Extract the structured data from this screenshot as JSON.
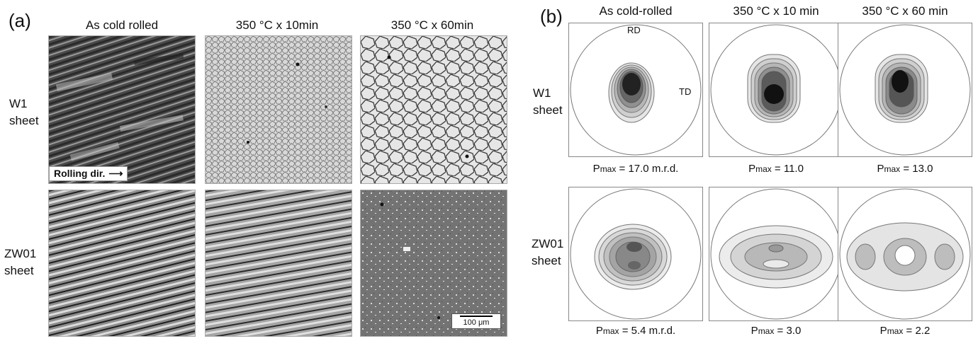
{
  "panel_a": {
    "label": "(a)",
    "columns": [
      "As cold rolled",
      "350 °C x 10min",
      "350 °C x 60min"
    ],
    "rows": [
      {
        "line1": "W1",
        "line2": "sheet"
      },
      {
        "line1": "ZW01",
        "line2": "sheet"
      }
    ],
    "rolling_dir": "Rolling dir.",
    "scale_bar": "100 μm"
  },
  "panel_b": {
    "label": "(b)",
    "columns": [
      "As cold-rolled",
      "350 °C x 10 min",
      "350 °C x 60 min"
    ],
    "rows": [
      {
        "line1": "W1",
        "line2": "sheet"
      },
      {
        "line1": "ZW01",
        "line2": "sheet"
      }
    ],
    "rd_label": "RD",
    "td_label": "TD",
    "p_letter": "P",
    "p_sub": "max",
    "pmax_values": [
      [
        "= 17.0 m.r.d.",
        "= 11.0",
        "= 13.0"
      ],
      [
        "= 5.4 m.r.d.",
        "= 3.0",
        "= 2.2"
      ]
    ]
  }
}
